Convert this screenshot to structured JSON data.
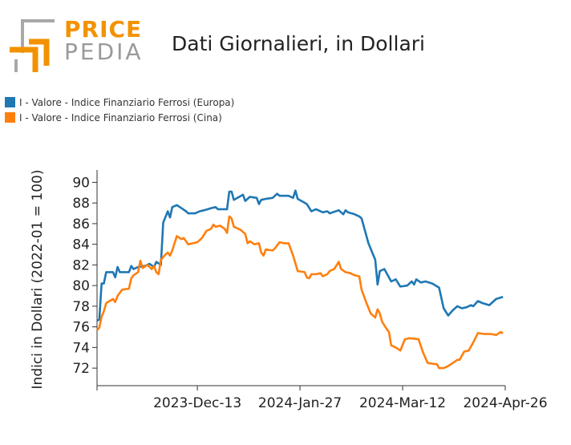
{
  "logo": {
    "line1": "PRICE",
    "line2": "PEDIA"
  },
  "chart_data": {
    "type": "line",
    "title": "Dati Giornalieri, in Dollari",
    "ylabel": "Indici in Dollari (2022-01 = 100)",
    "xlabel": "",
    "ylim": [
      70.3,
      91.2
    ],
    "yticks": [
      72,
      74,
      76,
      78,
      80,
      82,
      84,
      86,
      88,
      90
    ],
    "xlim": [
      "2023-10-30",
      "2024-04-26"
    ],
    "xticks": [
      "2023-Dec-13",
      "2024-Jan-27",
      "2024-Mar-12",
      "2024-Apr-26"
    ],
    "xtick_dates": [
      "2023-12-13",
      "2024-01-27",
      "2024-03-12",
      "2024-04-26"
    ],
    "legend_placement": "top-left",
    "grid": false,
    "series": [
      {
        "name": "I - Valore - Indice Finanziario Ferrosi (Europa)",
        "color": "#1f77b4",
        "points": [
          [
            "2023-10-30",
            76.6
          ],
          [
            "2023-10-31",
            76.7
          ],
          [
            "2023-11-01",
            80.2
          ],
          [
            "2023-11-02",
            80.2
          ],
          [
            "2023-11-03",
            81.3
          ],
          [
            "2023-11-06",
            81.3
          ],
          [
            "2023-11-07",
            80.8
          ],
          [
            "2023-11-08",
            81.8
          ],
          [
            "2023-11-09",
            81.3
          ],
          [
            "2023-11-13",
            81.3
          ],
          [
            "2023-11-14",
            81.9
          ],
          [
            "2023-11-15",
            81.6
          ],
          [
            "2023-11-17",
            81.8
          ],
          [
            "2023-11-20",
            81.9
          ],
          [
            "2023-11-22",
            82.1
          ],
          [
            "2023-11-24",
            81.8
          ],
          [
            "2023-11-25",
            82.3
          ],
          [
            "2023-11-27",
            82.0
          ],
          [
            "2023-11-28",
            86.1
          ],
          [
            "2023-11-30",
            87.2
          ],
          [
            "2023-12-01",
            86.6
          ],
          [
            "2023-12-02",
            87.6
          ],
          [
            "2023-12-04",
            87.8
          ],
          [
            "2023-12-06",
            87.5
          ],
          [
            "2023-12-08",
            87.2
          ],
          [
            "2023-12-09",
            87.0
          ],
          [
            "2023-12-12",
            87.0
          ],
          [
            "2023-12-14",
            87.2
          ],
          [
            "2023-12-16",
            87.3
          ],
          [
            "2023-12-19",
            87.5
          ],
          [
            "2023-12-21",
            87.6
          ],
          [
            "2023-12-22",
            87.4
          ],
          [
            "2023-12-26",
            87.4
          ],
          [
            "2023-12-27",
            89.1
          ],
          [
            "2023-12-28",
            89.1
          ],
          [
            "2023-12-29",
            88.3
          ],
          [
            "2024-01-02",
            88.8
          ],
          [
            "2024-01-03",
            88.2
          ],
          [
            "2024-01-05",
            88.6
          ],
          [
            "2024-01-08",
            88.5
          ],
          [
            "2024-01-09",
            87.9
          ],
          [
            "2024-01-10",
            88.3
          ],
          [
            "2024-01-12",
            88.4
          ],
          [
            "2024-01-15",
            88.5
          ],
          [
            "2024-01-17",
            88.9
          ],
          [
            "2024-01-18",
            88.7
          ],
          [
            "2024-01-22",
            88.7
          ],
          [
            "2024-01-24",
            88.5
          ],
          [
            "2024-01-25",
            89.2
          ],
          [
            "2024-01-26",
            88.4
          ],
          [
            "2024-01-30",
            87.9
          ],
          [
            "2024-02-01",
            87.2
          ],
          [
            "2024-02-03",
            87.4
          ],
          [
            "2024-02-06",
            87.1
          ],
          [
            "2024-02-08",
            87.2
          ],
          [
            "2024-02-09",
            87.0
          ],
          [
            "2024-02-13",
            87.3
          ],
          [
            "2024-02-15",
            86.9
          ],
          [
            "2024-02-16",
            87.3
          ],
          [
            "2024-02-17",
            87.1
          ],
          [
            "2024-02-20",
            86.9
          ],
          [
            "2024-02-22",
            86.7
          ],
          [
            "2024-02-23",
            86.5
          ],
          [
            "2024-02-26",
            84.1
          ],
          [
            "2024-02-29",
            82.5
          ],
          [
            "2024-03-01",
            80.1
          ],
          [
            "2024-03-02",
            81.4
          ],
          [
            "2024-03-04",
            81.6
          ],
          [
            "2024-03-07",
            80.4
          ],
          [
            "2024-03-09",
            80.6
          ],
          [
            "2024-03-11",
            79.9
          ],
          [
            "2024-03-14",
            80.0
          ],
          [
            "2024-03-16",
            80.4
          ],
          [
            "2024-03-17",
            80.1
          ],
          [
            "2024-03-18",
            80.6
          ],
          [
            "2024-03-20",
            80.3
          ],
          [
            "2024-03-22",
            80.4
          ],
          [
            "2024-03-25",
            80.2
          ],
          [
            "2024-03-28",
            79.8
          ],
          [
            "2024-03-30",
            77.8
          ],
          [
            "2024-04-01",
            77.1
          ],
          [
            "2024-04-03",
            77.6
          ],
          [
            "2024-04-05",
            78.0
          ],
          [
            "2024-04-07",
            77.8
          ],
          [
            "2024-04-09",
            77.9
          ],
          [
            "2024-04-11",
            78.1
          ],
          [
            "2024-04-12",
            78.0
          ],
          [
            "2024-04-14",
            78.5
          ],
          [
            "2024-04-16",
            78.3
          ],
          [
            "2024-04-19",
            78.1
          ],
          [
            "2024-04-22",
            78.7
          ],
          [
            "2024-04-25",
            78.9
          ]
        ]
      },
      {
        "name": "I - Valore - Indice Finanziario Ferrosi (Cina)",
        "color": "#ff7f0e",
        "points": [
          [
            "2023-10-30",
            75.7
          ],
          [
            "2023-10-31",
            75.9
          ],
          [
            "2023-11-01",
            77.0
          ],
          [
            "2023-11-02",
            77.5
          ],
          [
            "2023-11-03",
            78.3
          ],
          [
            "2023-11-06",
            78.7
          ],
          [
            "2023-11-07",
            78.4
          ],
          [
            "2023-11-08",
            79.0
          ],
          [
            "2023-11-10",
            79.6
          ],
          [
            "2023-11-13",
            79.7
          ],
          [
            "2023-11-14",
            80.7
          ],
          [
            "2023-11-15",
            81.0
          ],
          [
            "2023-11-17",
            81.3
          ],
          [
            "2023-11-18",
            82.4
          ],
          [
            "2023-11-19",
            81.7
          ],
          [
            "2023-11-21",
            82.0
          ],
          [
            "2023-11-23",
            81.6
          ],
          [
            "2023-11-24",
            81.9
          ],
          [
            "2023-11-25",
            81.3
          ],
          [
            "2023-11-26",
            81.1
          ],
          [
            "2023-11-27",
            82.5
          ],
          [
            "2023-11-29",
            83.0
          ],
          [
            "2023-11-30",
            83.2
          ],
          [
            "2023-12-01",
            82.9
          ],
          [
            "2023-12-02",
            83.4
          ],
          [
            "2023-12-04",
            84.8
          ],
          [
            "2023-12-06",
            84.5
          ],
          [
            "2023-12-07",
            84.6
          ],
          [
            "2023-12-09",
            84.0
          ],
          [
            "2023-12-11",
            84.1
          ],
          [
            "2023-12-13",
            84.2
          ],
          [
            "2023-12-15",
            84.6
          ],
          [
            "2023-12-17",
            85.3
          ],
          [
            "2023-12-19",
            85.5
          ],
          [
            "2023-12-20",
            85.9
          ],
          [
            "2023-12-21",
            85.7
          ],
          [
            "2023-12-23",
            85.8
          ],
          [
            "2023-12-25",
            85.5
          ],
          [
            "2023-12-26",
            85.1
          ],
          [
            "2023-12-27",
            86.7
          ],
          [
            "2023-12-28",
            86.5
          ],
          [
            "2023-12-29",
            85.7
          ],
          [
            "2024-01-01",
            85.4
          ],
          [
            "2024-01-03",
            85.0
          ],
          [
            "2024-01-04",
            84.1
          ],
          [
            "2024-01-05",
            84.3
          ],
          [
            "2024-01-07",
            84.0
          ],
          [
            "2024-01-09",
            84.1
          ],
          [
            "2024-01-10",
            83.2
          ],
          [
            "2024-01-11",
            82.9
          ],
          [
            "2024-01-12",
            83.5
          ],
          [
            "2024-01-15",
            83.4
          ],
          [
            "2024-01-16",
            83.6
          ],
          [
            "2024-01-18",
            84.2
          ],
          [
            "2024-01-20",
            84.1
          ],
          [
            "2024-01-22",
            84.1
          ],
          [
            "2024-01-24",
            82.9
          ],
          [
            "2024-01-26",
            81.4
          ],
          [
            "2024-01-29",
            81.3
          ],
          [
            "2024-01-30",
            80.8
          ],
          [
            "2024-01-31",
            80.7
          ],
          [
            "2024-02-01",
            81.1
          ],
          [
            "2024-02-03",
            81.1
          ],
          [
            "2024-02-05",
            81.2
          ],
          [
            "2024-02-06",
            80.9
          ],
          [
            "2024-02-08",
            81.1
          ],
          [
            "2024-02-09",
            81.4
          ],
          [
            "2024-02-11",
            81.6
          ],
          [
            "2024-02-13",
            82.3
          ],
          [
            "2024-02-14",
            81.6
          ],
          [
            "2024-02-16",
            81.3
          ],
          [
            "2024-02-18",
            81.2
          ],
          [
            "2024-02-20",
            81.0
          ],
          [
            "2024-02-22",
            80.9
          ],
          [
            "2024-02-23",
            79.6
          ],
          [
            "2024-02-25",
            78.4
          ],
          [
            "2024-02-27",
            77.3
          ],
          [
            "2024-02-29",
            76.9
          ],
          [
            "2024-03-01",
            77.7
          ],
          [
            "2024-03-02",
            77.3
          ],
          [
            "2024-03-03",
            76.5
          ],
          [
            "2024-03-05",
            75.8
          ],
          [
            "2024-03-06",
            75.5
          ],
          [
            "2024-03-07",
            74.2
          ],
          [
            "2024-03-09",
            74.0
          ],
          [
            "2024-03-11",
            73.7
          ],
          [
            "2024-03-13",
            74.8
          ],
          [
            "2024-03-15",
            74.9
          ],
          [
            "2024-03-19",
            74.8
          ],
          [
            "2024-03-21",
            73.5
          ],
          [
            "2024-03-23",
            72.5
          ],
          [
            "2024-03-26",
            72.4
          ],
          [
            "2024-03-27",
            72.4
          ],
          [
            "2024-03-28",
            72.0
          ],
          [
            "2024-03-30",
            72.0
          ],
          [
            "2024-04-01",
            72.2
          ],
          [
            "2024-04-03",
            72.5
          ],
          [
            "2024-04-05",
            72.8
          ],
          [
            "2024-04-06",
            72.8
          ],
          [
            "2024-04-08",
            73.6
          ],
          [
            "2024-04-10",
            73.7
          ],
          [
            "2024-04-12",
            74.5
          ],
          [
            "2024-04-14",
            75.4
          ],
          [
            "2024-04-17",
            75.3
          ],
          [
            "2024-04-20",
            75.3
          ],
          [
            "2024-04-22",
            75.2
          ],
          [
            "2024-04-24",
            75.5
          ],
          [
            "2024-04-25",
            75.4
          ]
        ]
      }
    ]
  }
}
